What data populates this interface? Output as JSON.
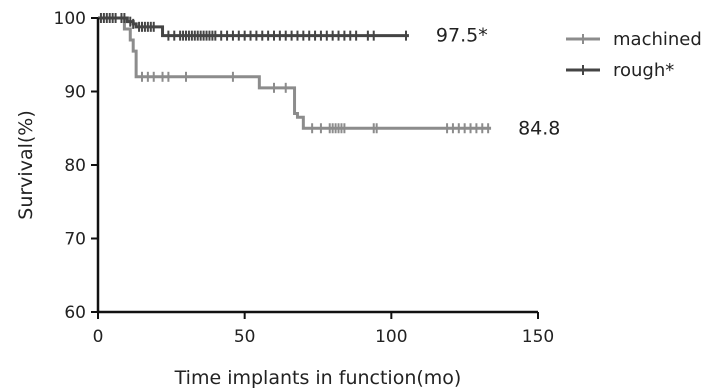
{
  "chart_data": {
    "type": "line",
    "xlabel": "Time implants in function(mo)",
    "ylabel": "Survival(%)",
    "xlim": [
      0,
      150
    ],
    "ylim": [
      60,
      100
    ],
    "x_ticks": [
      0,
      50,
      100,
      150
    ],
    "y_ticks": [
      60,
      70,
      80,
      90,
      100
    ],
    "x_tick_labels": [
      "0",
      "50",
      "100",
      "150"
    ],
    "y_tick_labels": [
      "60",
      "70",
      "80",
      "90",
      "100"
    ],
    "grid": false,
    "legend_position": "top-right",
    "series": [
      {
        "name": "machined",
        "color": "#8c8c8c",
        "end_label": "84.8",
        "x": [
          0,
          9,
          11,
          12,
          13,
          54,
          55,
          66,
          67,
          68,
          70,
          134
        ],
        "y": [
          100,
          98.5,
          97,
          95.5,
          92,
          92,
          90.5,
          90.5,
          87,
          86.5,
          85,
          85
        ],
        "censored_x": [
          15,
          17,
          19,
          22,
          24,
          30,
          46,
          60,
          64,
          73,
          76,
          79,
          80,
          81,
          82,
          83,
          84,
          94,
          95,
          119,
          121,
          123,
          125,
          127,
          129,
          131,
          133
        ]
      },
      {
        "name": "rough*",
        "color": "#444444",
        "end_label": "97.5*",
        "x": [
          0,
          7,
          10,
          12,
          13,
          20,
          22,
          106
        ],
        "y": [
          100,
          100,
          99.5,
          99.2,
          98.8,
          98.8,
          97.6,
          97.6
        ],
        "censored_x": [
          1,
          2,
          3,
          4,
          5,
          6,
          8,
          9,
          11,
          12,
          14,
          15,
          16,
          17,
          18,
          19,
          24,
          26,
          28,
          29,
          30,
          31,
          32,
          33,
          34,
          35,
          36,
          37,
          38,
          39,
          40,
          42,
          44,
          46,
          48,
          50,
          52,
          54,
          56,
          58,
          60,
          62,
          64,
          66,
          68,
          70,
          72,
          74,
          76,
          78,
          80,
          82,
          84,
          86,
          88,
          92,
          94,
          105
        ]
      }
    ]
  }
}
